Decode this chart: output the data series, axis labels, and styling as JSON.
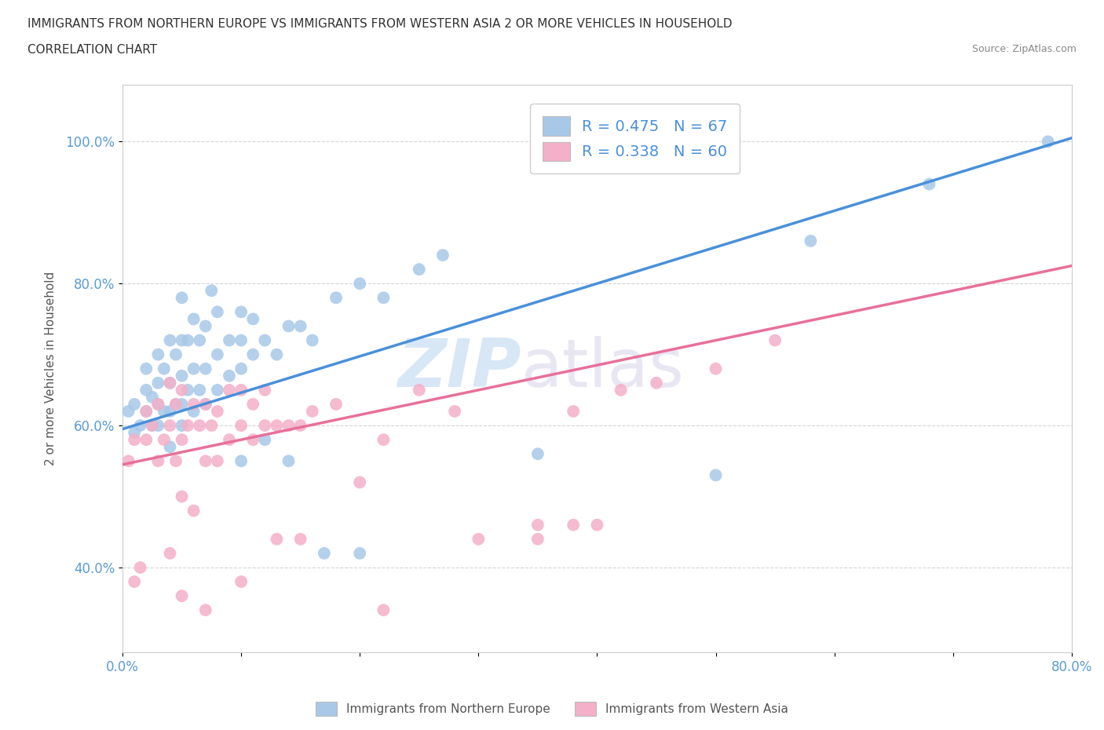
{
  "title_line1": "IMMIGRANTS FROM NORTHERN EUROPE VS IMMIGRANTS FROM WESTERN ASIA 2 OR MORE VEHICLES IN HOUSEHOLD",
  "title_line2": "CORRELATION CHART",
  "source_text": "Source: ZipAtlas.com",
  "ylabel": "2 or more Vehicles in Household",
  "xlim": [
    0.0,
    0.8
  ],
  "ylim": [
    0.28,
    1.08
  ],
  "blue_color": "#a8c8e8",
  "pink_color": "#f4b0c8",
  "blue_line_color": "#4a90d9",
  "pink_line_color": "#e8709a",
  "legend_blue_label": "R = 0.475   N = 67",
  "legend_pink_label": "R = 0.338   N = 60",
  "bottom_legend_blue": "Immigrants from Northern Europe",
  "bottom_legend_pink": "Immigrants from Western Asia",
  "watermark_zip": "ZIP",
  "watermark_atlas": "atlas",
  "blue_line_x": [
    0.0,
    0.8
  ],
  "blue_line_y": [
    0.595,
    1.005
  ],
  "pink_line_x": [
    0.0,
    0.8
  ],
  "pink_line_y": [
    0.545,
    0.825
  ],
  "blue_scatter_x": [
    0.005,
    0.01,
    0.01,
    0.015,
    0.02,
    0.02,
    0.02,
    0.025,
    0.025,
    0.03,
    0.03,
    0.03,
    0.03,
    0.035,
    0.035,
    0.04,
    0.04,
    0.04,
    0.04,
    0.045,
    0.045,
    0.05,
    0.05,
    0.05,
    0.05,
    0.05,
    0.055,
    0.055,
    0.06,
    0.06,
    0.06,
    0.065,
    0.065,
    0.07,
    0.07,
    0.07,
    0.075,
    0.08,
    0.08,
    0.08,
    0.09,
    0.09,
    0.1,
    0.1,
    0.1,
    0.11,
    0.11,
    0.12,
    0.13,
    0.14,
    0.15,
    0.16,
    0.18,
    0.2,
    0.22,
    0.25,
    0.27,
    0.1,
    0.12,
    0.14,
    0.17,
    0.2,
    0.35,
    0.5,
    0.58,
    0.68,
    0.78
  ],
  "blue_scatter_y": [
    0.62,
    0.59,
    0.63,
    0.6,
    0.62,
    0.65,
    0.68,
    0.6,
    0.64,
    0.6,
    0.63,
    0.66,
    0.7,
    0.62,
    0.68,
    0.57,
    0.62,
    0.66,
    0.72,
    0.63,
    0.7,
    0.6,
    0.63,
    0.67,
    0.72,
    0.78,
    0.65,
    0.72,
    0.62,
    0.68,
    0.75,
    0.65,
    0.72,
    0.63,
    0.68,
    0.74,
    0.79,
    0.65,
    0.7,
    0.76,
    0.67,
    0.72,
    0.68,
    0.72,
    0.76,
    0.7,
    0.75,
    0.72,
    0.7,
    0.74,
    0.74,
    0.72,
    0.78,
    0.8,
    0.78,
    0.82,
    0.84,
    0.55,
    0.58,
    0.55,
    0.42,
    0.42,
    0.56,
    0.53,
    0.86,
    0.94,
    1.0
  ],
  "pink_scatter_x": [
    0.005,
    0.01,
    0.01,
    0.015,
    0.02,
    0.02,
    0.025,
    0.03,
    0.03,
    0.035,
    0.04,
    0.04,
    0.04,
    0.045,
    0.045,
    0.05,
    0.05,
    0.05,
    0.055,
    0.06,
    0.06,
    0.065,
    0.07,
    0.07,
    0.075,
    0.08,
    0.08,
    0.09,
    0.09,
    0.1,
    0.1,
    0.11,
    0.11,
    0.12,
    0.12,
    0.13,
    0.14,
    0.15,
    0.16,
    0.18,
    0.2,
    0.22,
    0.25,
    0.28,
    0.3,
    0.35,
    0.38,
    0.38,
    0.42,
    0.45,
    0.5,
    0.55,
    0.35,
    0.4,
    0.05,
    0.07,
    0.1,
    0.13,
    0.15,
    0.22
  ],
  "pink_scatter_y": [
    0.55,
    0.38,
    0.58,
    0.4,
    0.58,
    0.62,
    0.6,
    0.55,
    0.63,
    0.58,
    0.42,
    0.6,
    0.66,
    0.55,
    0.63,
    0.5,
    0.58,
    0.65,
    0.6,
    0.48,
    0.63,
    0.6,
    0.55,
    0.63,
    0.6,
    0.55,
    0.62,
    0.58,
    0.65,
    0.6,
    0.65,
    0.58,
    0.63,
    0.6,
    0.65,
    0.6,
    0.6,
    0.6,
    0.62,
    0.63,
    0.52,
    0.58,
    0.65,
    0.62,
    0.44,
    0.46,
    0.46,
    0.62,
    0.65,
    0.66,
    0.68,
    0.72,
    0.44,
    0.46,
    0.36,
    0.34,
    0.38,
    0.44,
    0.44,
    0.34
  ]
}
